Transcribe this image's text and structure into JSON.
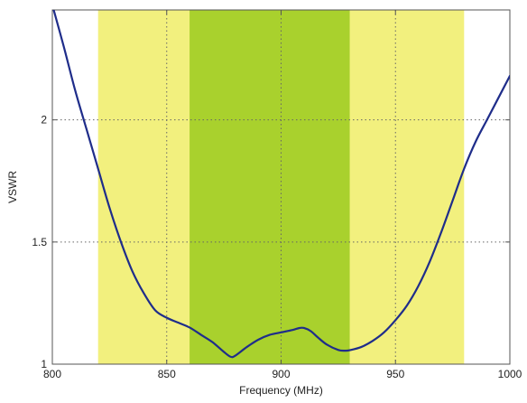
{
  "chart_data": {
    "type": "line",
    "title": "",
    "xlabel": "Frequency (MHz)",
    "ylabel": "VSWR",
    "xlim": [
      800,
      1000
    ],
    "ylim": [
      1,
      2.45
    ],
    "xticks": [
      800,
      850,
      900,
      950,
      1000
    ],
    "xtick_labels": [
      "800",
      "850",
      "900",
      "950",
      "1000"
    ],
    "yticks": [
      1,
      1.5,
      2
    ],
    "ytick_labels": [
      "1",
      "1.5",
      "2"
    ],
    "grid": true,
    "legend": "none",
    "bands": [
      {
        "x0": 820,
        "x1": 980,
        "color": "#f2f07e"
      },
      {
        "x0": 860,
        "x1": 930,
        "color": "#a9d12d"
      }
    ],
    "series": [
      {
        "color": "#1f2d8a",
        "x": [
          800,
          805,
          810,
          815,
          820,
          825,
          830,
          835,
          840,
          845,
          850,
          855,
          860,
          865,
          870,
          875,
          878,
          880,
          885,
          890,
          895,
          900,
          905,
          908,
          910,
          913,
          916,
          920,
          925,
          928,
          930,
          935,
          940,
          945,
          950,
          955,
          960,
          965,
          970,
          975,
          980,
          985,
          990,
          995,
          1000
        ],
        "y": [
          2.47,
          2.3,
          2.12,
          1.96,
          1.8,
          1.64,
          1.5,
          1.38,
          1.29,
          1.22,
          1.19,
          1.17,
          1.15,
          1.12,
          1.09,
          1.05,
          1.03,
          1.035,
          1.07,
          1.1,
          1.12,
          1.13,
          1.14,
          1.148,
          1.148,
          1.135,
          1.11,
          1.08,
          1.058,
          1.055,
          1.057,
          1.07,
          1.095,
          1.13,
          1.18,
          1.24,
          1.32,
          1.42,
          1.54,
          1.67,
          1.8,
          1.91,
          2.0,
          2.09,
          2.18
        ]
      }
    ]
  }
}
